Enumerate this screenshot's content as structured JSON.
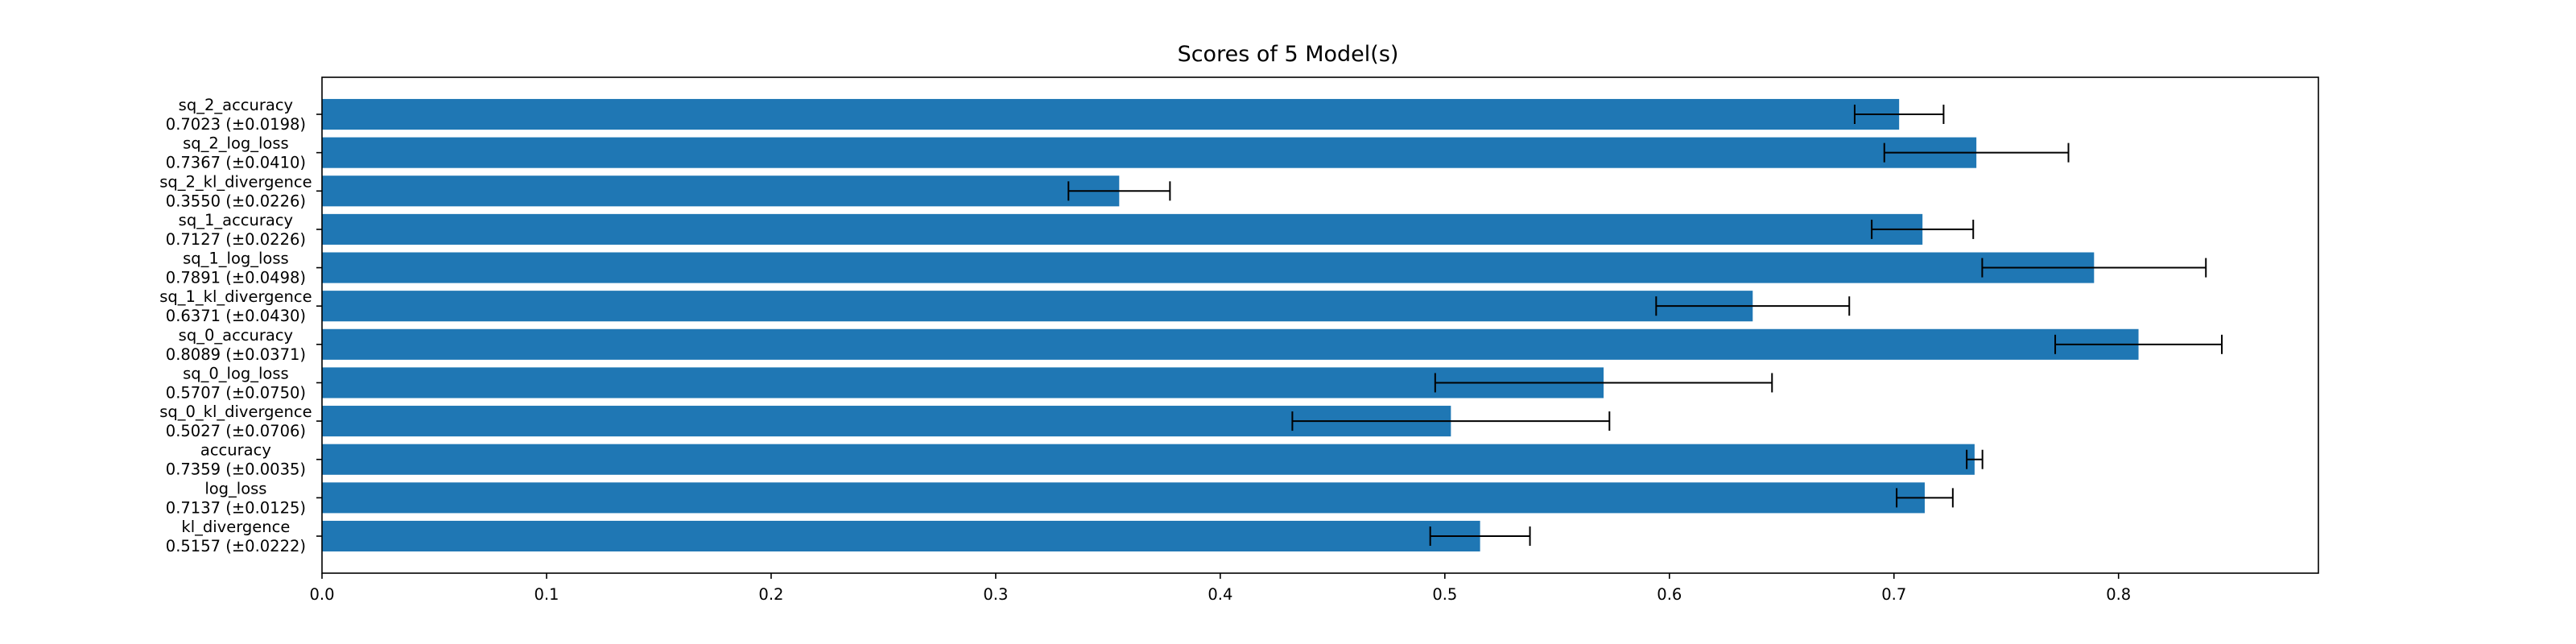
{
  "chart_data": {
    "type": "bar",
    "orientation": "horizontal",
    "title": "Scores of 5 Model(s)",
    "xlabel": "",
    "ylabel": "",
    "xlim": [
      0.0,
      0.889
    ],
    "x_ticks": [
      "0.0",
      "0.1",
      "0.2",
      "0.3",
      "0.4",
      "0.5",
      "0.6",
      "0.7",
      "0.8"
    ],
    "bar_color": "#1f77b4",
    "grid": false,
    "bars": [
      {
        "name": "sq_2_accuracy",
        "value": 0.7023,
        "error": 0.0198,
        "label_line1": "sq_2_accuracy",
        "label_line2": "0.7023 (±0.0198)"
      },
      {
        "name": "sq_2_log_loss",
        "value": 0.7367,
        "error": 0.041,
        "label_line1": "sq_2_log_loss",
        "label_line2": "0.7367 (±0.0410)"
      },
      {
        "name": "sq_2_kl_divergence",
        "value": 0.355,
        "error": 0.0226,
        "label_line1": "sq_2_kl_divergence",
        "label_line2": "0.3550 (±0.0226)"
      },
      {
        "name": "sq_1_accuracy",
        "value": 0.7127,
        "error": 0.0226,
        "label_line1": "sq_1_accuracy",
        "label_line2": "0.7127 (±0.0226)"
      },
      {
        "name": "sq_1_log_loss",
        "value": 0.7891,
        "error": 0.0498,
        "label_line1": "sq_1_log_loss",
        "label_line2": "0.7891 (±0.0498)"
      },
      {
        "name": "sq_1_kl_divergence",
        "value": 0.6371,
        "error": 0.043,
        "label_line1": "sq_1_kl_divergence",
        "label_line2": "0.6371 (±0.0430)"
      },
      {
        "name": "sq_0_accuracy",
        "value": 0.8089,
        "error": 0.0371,
        "label_line1": "sq_0_accuracy",
        "label_line2": "0.8089 (±0.0371)"
      },
      {
        "name": "sq_0_log_loss",
        "value": 0.5707,
        "error": 0.075,
        "label_line1": "sq_0_log_loss",
        "label_line2": "0.5707 (±0.0750)"
      },
      {
        "name": "sq_0_kl_divergence",
        "value": 0.5027,
        "error": 0.0706,
        "label_line1": "sq_0_kl_divergence",
        "label_line2": "0.5027 (±0.0706)"
      },
      {
        "name": "accuracy",
        "value": 0.7359,
        "error": 0.0035,
        "label_line1": "accuracy",
        "label_line2": "0.7359 (±0.0035)"
      },
      {
        "name": "log_loss",
        "value": 0.7137,
        "error": 0.0125,
        "label_line1": "log_loss",
        "label_line2": "0.7137 (±0.0125)"
      },
      {
        "name": "kl_divergence",
        "value": 0.5157,
        "error": 0.0222,
        "label_line1": "kl_divergence",
        "label_line2": "0.5157 (±0.0222)"
      }
    ]
  }
}
